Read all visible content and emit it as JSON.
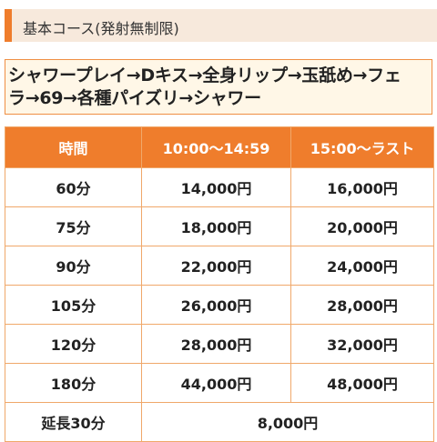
{
  "section": {
    "title": "基本コース(発射無制限)"
  },
  "course": {
    "line1": "シャワープレイ→Dキス→全身リップ→玉舐め→フェ",
    "line2": "ラ→69→各種パイズリ→シャワー"
  },
  "table": {
    "headers": [
      "時間",
      "10:00〜14:59",
      "15:00〜ラスト"
    ],
    "rows": [
      {
        "duration": "60分",
        "day": "14,000円",
        "night": "16,000円"
      },
      {
        "duration": "75分",
        "day": "18,000円",
        "night": "20,000円"
      },
      {
        "duration": "90分",
        "day": "22,000円",
        "night": "24,000円"
      },
      {
        "duration": "105分",
        "day": "26,000円",
        "night": "28,000円"
      },
      {
        "duration": "120分",
        "day": "28,000円",
        "night": "32,000円"
      },
      {
        "duration": "180分",
        "day": "44,000円",
        "night": "48,000円"
      }
    ],
    "extension": {
      "label": "延長30分",
      "price": "8,000円"
    }
  },
  "colors": {
    "accent": "#ef7d2c",
    "header_bg": "#f7e9dc",
    "course_bg": "#fff7e7",
    "border": "#f0a86a"
  }
}
